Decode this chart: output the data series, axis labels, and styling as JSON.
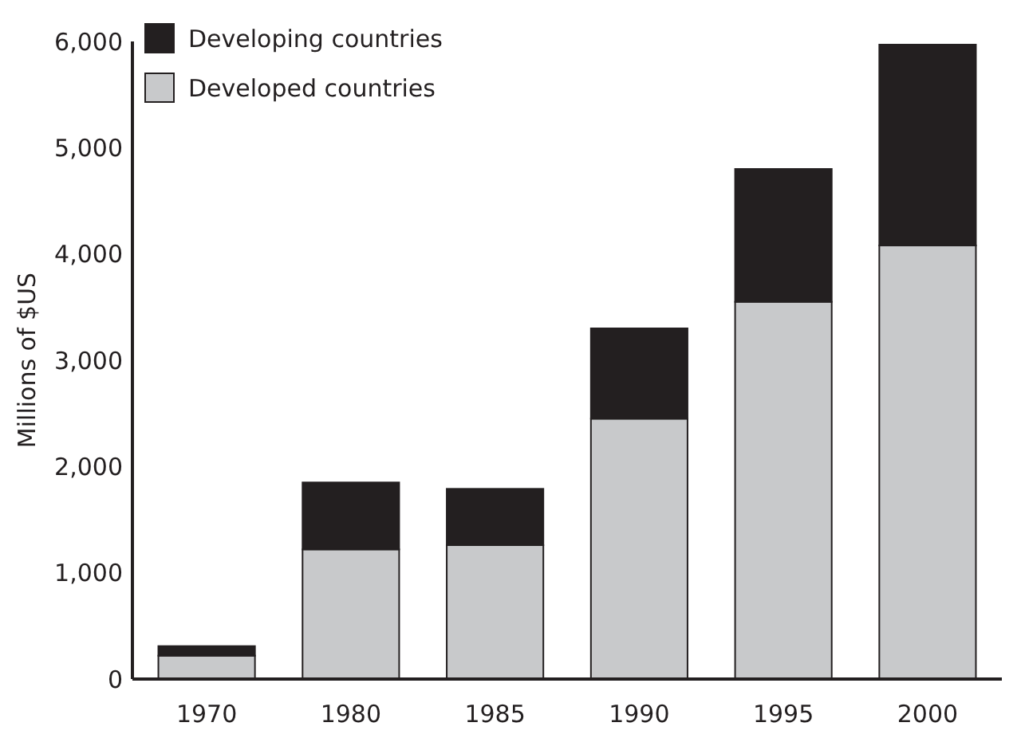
{
  "chart_data": {
    "type": "bar",
    "ylabel": "Millions of $US",
    "categories": [
      "1970",
      "1980",
      "1985",
      "1990",
      "1995",
      "2000"
    ],
    "stacked": true,
    "legend": "top left",
    "ylim": [
      0,
      6000
    ],
    "yticks": [
      {
        "value": 0,
        "label": "0"
      },
      {
        "value": 1000,
        "label": "1,000"
      },
      {
        "value": 2000,
        "label": "2,000"
      },
      {
        "value": 3000,
        "label": "3,000"
      },
      {
        "value": 4000,
        "label": "4,000"
      },
      {
        "value": 5000,
        "label": "5,000"
      },
      {
        "value": 6000,
        "label": "6,000"
      }
    ],
    "series": [
      {
        "name": "Developed countries",
        "color": "#c8c9cb",
        "values": [
          220,
          1220,
          1260,
          2450,
          3550,
          4080
        ]
      },
      {
        "name": "Developing countries",
        "color": "#231f20",
        "values": [
          90,
          630,
          530,
          850,
          1250,
          1890
        ]
      }
    ]
  }
}
